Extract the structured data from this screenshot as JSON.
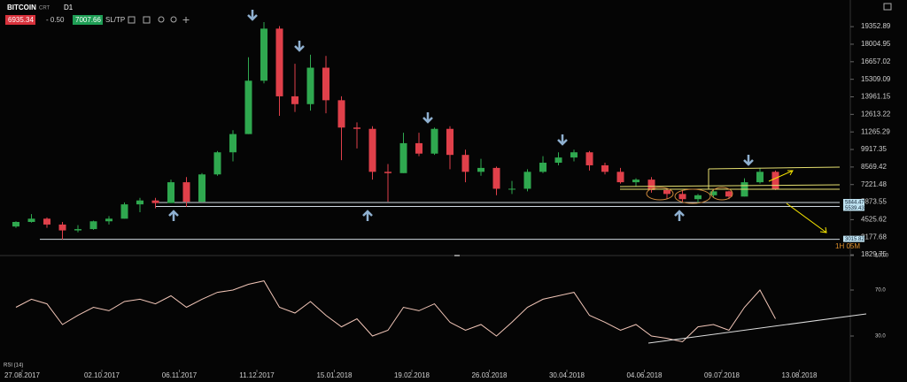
{
  "header": {
    "symbol": "BITCOIN",
    "account": "CRT",
    "timeframe": "D1",
    "bid": "6935.34",
    "spread": "- 0.50",
    "ask": "7007.66",
    "sltp": "SL/TP"
  },
  "chart_data": [
    {
      "type": "candlestick",
      "x": [
        "21.08.2017",
        "28.08.2017",
        "04.09.2017",
        "11.09.2017",
        "18.09.2017",
        "25.09.2017",
        "02.10.2017",
        "09.10.2017",
        "16.10.2017",
        "23.10.2017",
        "30.10.2017",
        "06.11.2017",
        "13.11.2017",
        "20.11.2017",
        "27.11.2017",
        "04.12.2017",
        "11.12.2017",
        "18.12.2017",
        "25.12.2017",
        "01.01.2018",
        "08.01.2018",
        "15.01.2018",
        "22.01.2018",
        "29.01.2018",
        "05.02.2018",
        "12.02.2018",
        "19.02.2018",
        "26.02.2018",
        "05.03.2018",
        "12.03.2018",
        "19.03.2018",
        "26.03.2018",
        "02.04.2018",
        "09.04.2018",
        "16.04.2018",
        "23.04.2018",
        "30.04.2018",
        "07.05.2018",
        "14.05.2018",
        "21.05.2018",
        "28.05.2018",
        "04.06.2018",
        "11.06.2018",
        "18.06.2018",
        "25.06.2018",
        "02.07.2018",
        "09.07.2018",
        "16.07.2018",
        "23.07.2018",
        "30.07.2018"
      ],
      "open": [
        4000,
        4350,
        4600,
        4150,
        3700,
        3800,
        4400,
        4600,
        5700,
        6000,
        5800,
        7400,
        5900,
        8000,
        9700,
        11100,
        15200,
        19200,
        14000,
        13400,
        16200,
        13700,
        11600,
        11500,
        8200,
        8100,
        10400,
        9600,
        11500,
        9500,
        8200,
        8500,
        6900,
        6900,
        8200,
        8900,
        9300,
        9700,
        8700,
        8200,
        7400,
        7600,
        6800,
        6500,
        6100,
        6400,
        6700,
        6300,
        7400,
        8200
      ],
      "high": [
        4400,
        4950,
        4700,
        4350,
        4100,
        4450,
        4800,
        5850,
        6200,
        6200,
        7600,
        7800,
        8100,
        9800,
        11400,
        17000,
        19700,
        19400,
        16500,
        17200,
        17100,
        14000,
        12000,
        11700,
        8800,
        11200,
        11200,
        11600,
        11700,
        9900,
        9200,
        8600,
        7500,
        8400,
        9400,
        9700,
        9900,
        9800,
        8900,
        8500,
        7700,
        7800,
        6900,
        6800,
        6500,
        6800,
        6750,
        7700,
        8500,
        8300
      ],
      "low": [
        3900,
        4300,
        3900,
        3000,
        3550,
        3750,
        4150,
        4600,
        5100,
        5400,
        5800,
        5500,
        5850,
        7900,
        9000,
        11100,
        15000,
        12500,
        12800,
        12900,
        12700,
        9100,
        10000,
        7600,
        5900,
        8100,
        9400,
        9500,
        8400,
        7400,
        7900,
        6400,
        6500,
        6700,
        8100,
        8700,
        9000,
        8300,
        8000,
        7300,
        7100,
        6600,
        6100,
        5900,
        5800,
        6200,
        6100,
        6300,
        7300,
        6800
      ],
      "close": [
        4350,
        4600,
        4150,
        3700,
        3800,
        4400,
        4600,
        5700,
        6000,
        5800,
        7400,
        5900,
        8000,
        9700,
        11100,
        15200,
        19200,
        14000,
        13400,
        16200,
        13700,
        11600,
        11500,
        8200,
        8100,
        10400,
        9600,
        11500,
        9500,
        8200,
        8500,
        6900,
        6900,
        8200,
        8900,
        9300,
        9700,
        8700,
        8200,
        7400,
        7600,
        6800,
        6500,
        6100,
        6400,
        6700,
        6300,
        7400,
        8200,
        6900
      ],
      "up_color": "#2fa84f",
      "down_color": "#e0404a",
      "xlim": [
        "17.08.2017",
        "05.09.2018"
      ],
      "xticks": [
        "27.08.2017",
        "02.10.2017",
        "06.11.2017",
        "11.12.2017",
        "15.01.2018",
        "19.02.2018",
        "26.03.2018",
        "30.04.2018",
        "04.06.2018",
        "09.07.2018",
        "13.08.2018"
      ],
      "ylim": [
        1700,
        21400
      ],
      "yticks": [
        19352.89,
        18004.95,
        16657.02,
        15309.09,
        13961.15,
        12613.22,
        11265.29,
        9917.35,
        8569.42,
        7221.48,
        5873.55,
        4525.62,
        3177.68,
        1829.75
      ],
      "price_lines": [
        5844.47,
        5539.43,
        3015.82
      ],
      "timer": "1H 05M"
    },
    {
      "type": "line",
      "title": "RSI (14)",
      "color": "#f2c6b8",
      "values": [
        55,
        62,
        58,
        40,
        48,
        55,
        52,
        60,
        62,
        58,
        65,
        55,
        62,
        68,
        70,
        75,
        78,
        55,
        50,
        60,
        48,
        38,
        45,
        30,
        35,
        55,
        52,
        58,
        42,
        35,
        40,
        30,
        42,
        55,
        62,
        65,
        68,
        48,
        42,
        35,
        40,
        30,
        28,
        25,
        38,
        40,
        35,
        55,
        70,
        45
      ],
      "ylim": [
        0,
        100
      ],
      "yticks": [
        {
          "value": 100,
          "label": "100.0"
        },
        {
          "value": 70,
          "label": "70.0"
        },
        {
          "value": 30,
          "label": "30.0"
        }
      ]
    }
  ]
}
